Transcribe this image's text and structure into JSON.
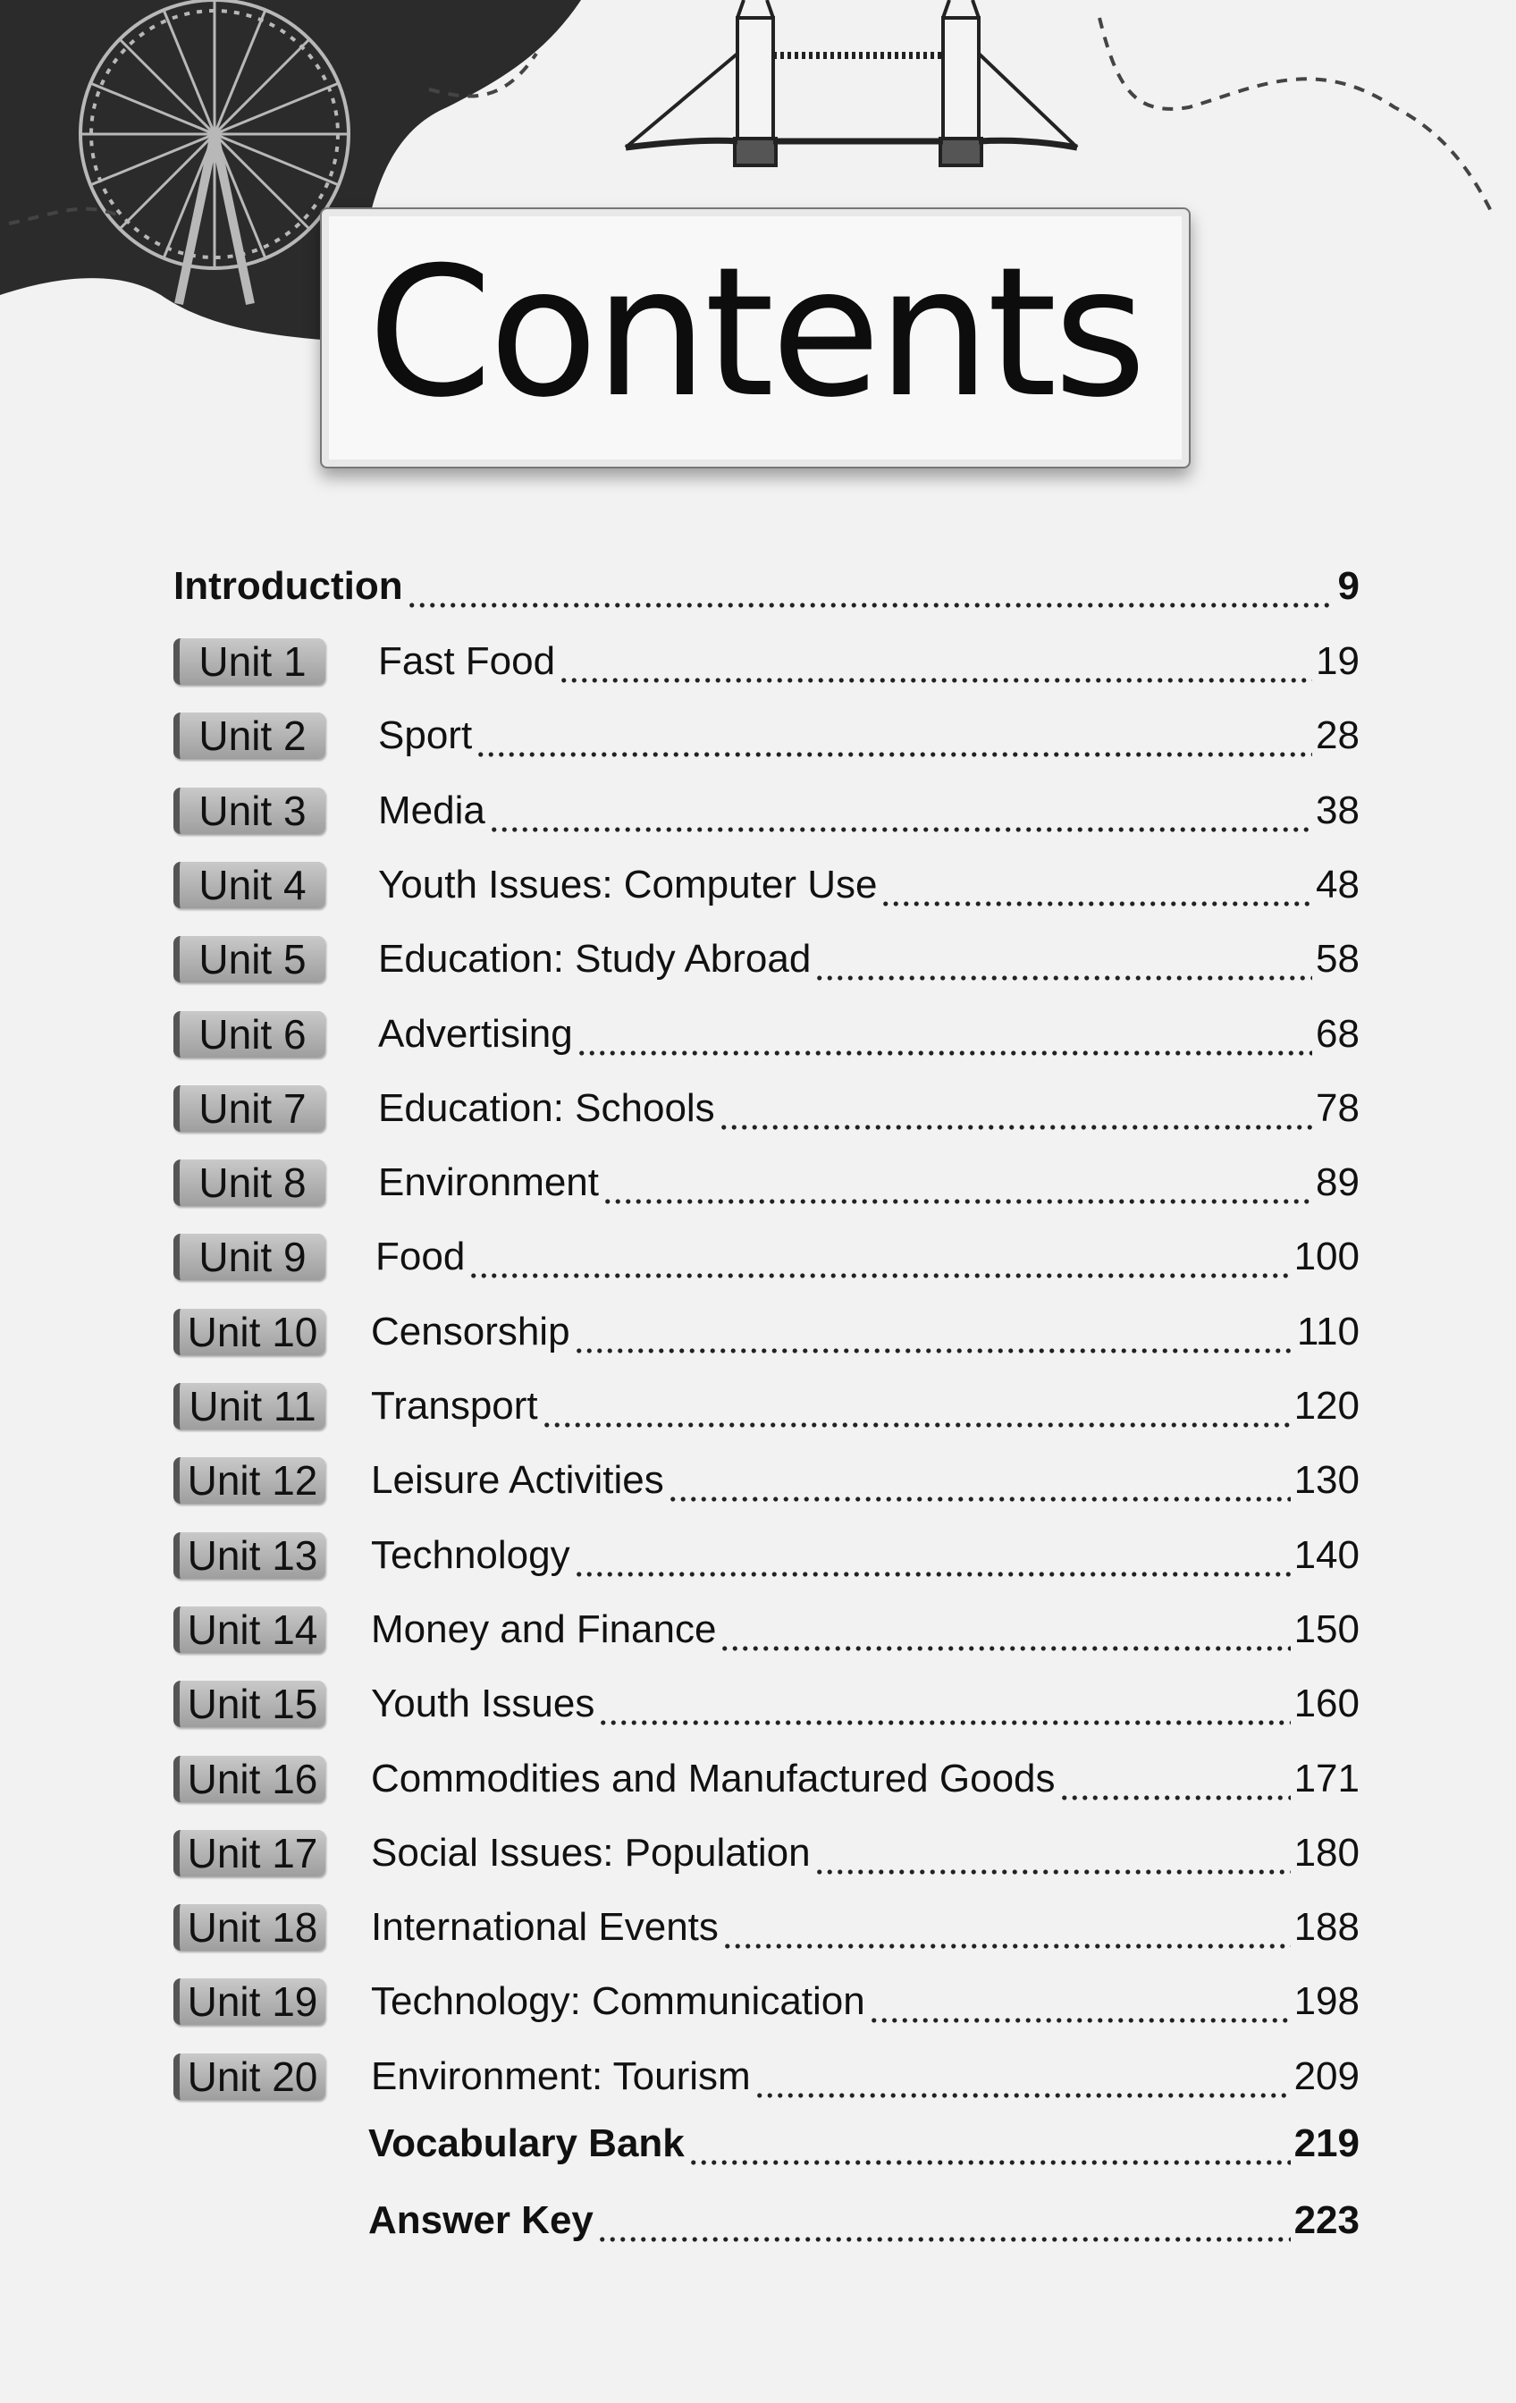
{
  "header": {
    "title": "Contents"
  },
  "introduction": {
    "label": "Introduction",
    "page": "9"
  },
  "units": [
    {
      "badge": "Unit 1",
      "title": "Fast Food",
      "page": "19"
    },
    {
      "badge": "Unit 2",
      "title": "Sport",
      "page": "28"
    },
    {
      "badge": "Unit 3",
      "title": "Media",
      "page": "38"
    },
    {
      "badge": "Unit 4",
      "title": "Youth Issues: Computer Use",
      "page": "48"
    },
    {
      "badge": "Unit 5",
      "title": "Education: Study Abroad",
      "page": "58"
    },
    {
      "badge": "Unit 6",
      "title": "Advertising",
      "page": "68"
    },
    {
      "badge": "Unit 7",
      "title": "Education: Schools",
      "page": "78"
    },
    {
      "badge": "Unit 8",
      "title": "Environment",
      "page": "89"
    },
    {
      "badge": "Unit 9",
      "title": "Food",
      "page": "100"
    },
    {
      "badge": "Unit 10",
      "title": "Censorship",
      "page": "110"
    },
    {
      "badge": "Unit 11",
      "title": "Transport",
      "page": "120"
    },
    {
      "badge": "Unit 12",
      "title": "Leisure Activities",
      "page": "130"
    },
    {
      "badge": "Unit 13",
      "title": "Technology",
      "page": "140"
    },
    {
      "badge": "Unit 14",
      "title": "Money and Finance",
      "page": "150"
    },
    {
      "badge": "Unit 15",
      "title": "Youth Issues",
      "page": "160"
    },
    {
      "badge": "Unit 16",
      "title": "Commodities and Manufactured Goods",
      "page": "171"
    },
    {
      "badge": "Unit 17",
      "title": "Social Issues: Population",
      "page": "180"
    },
    {
      "badge": "Unit 18",
      "title": "International Events",
      "page": "188"
    },
    {
      "badge": "Unit 19",
      "title": "Technology: Communication",
      "page": "198"
    },
    {
      "badge": "Unit 20",
      "title": "Environment: Tourism",
      "page": "209"
    }
  ],
  "appendix": [
    {
      "label": "Vocabulary Bank",
      "page": "219"
    },
    {
      "label": "Answer Key",
      "page": "223"
    }
  ],
  "colors": {
    "badge": "#a8a8a8",
    "background": "#f2f2f2",
    "blob": "#2b2b2b"
  }
}
